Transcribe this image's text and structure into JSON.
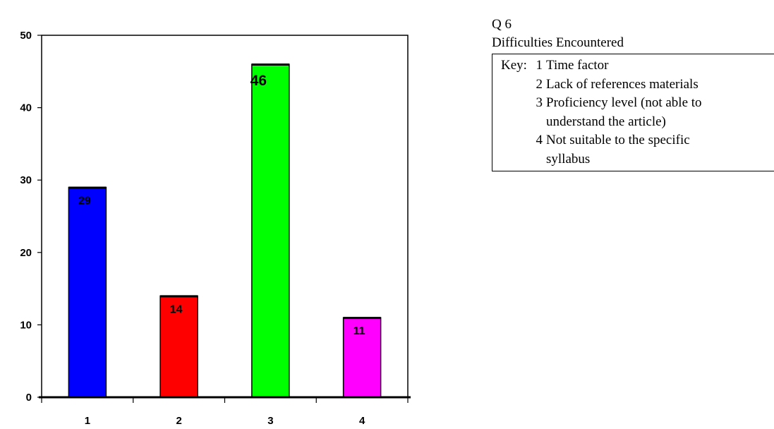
{
  "chart_data": {
    "type": "bar",
    "categories": [
      "1",
      "2",
      "3",
      "4"
    ],
    "values": [
      29,
      14,
      46,
      11
    ],
    "data_labels": [
      "29",
      "14",
      "46",
      "11"
    ],
    "colors": [
      "#0000ff",
      "#ff0000",
      "#00ff00",
      "#ff00ff"
    ],
    "ylim": [
      0,
      50
    ],
    "yticks": [
      "0",
      "10",
      "20",
      "30",
      "40",
      "50"
    ],
    "grid": false,
    "legend": false
  },
  "side": {
    "question": "Q 6",
    "subtitle": "Difficulties Encountered",
    "key_prefix": "Key:",
    "items": [
      {
        "num": "1",
        "text": "Time factor"
      },
      {
        "num": "2",
        "text": "Lack of references materials"
      },
      {
        "num": "3",
        "text": "Proficiency level (not able to understand the article)"
      },
      {
        "num": "4",
        "text": "Not suitable to the specific syllabus"
      }
    ]
  }
}
